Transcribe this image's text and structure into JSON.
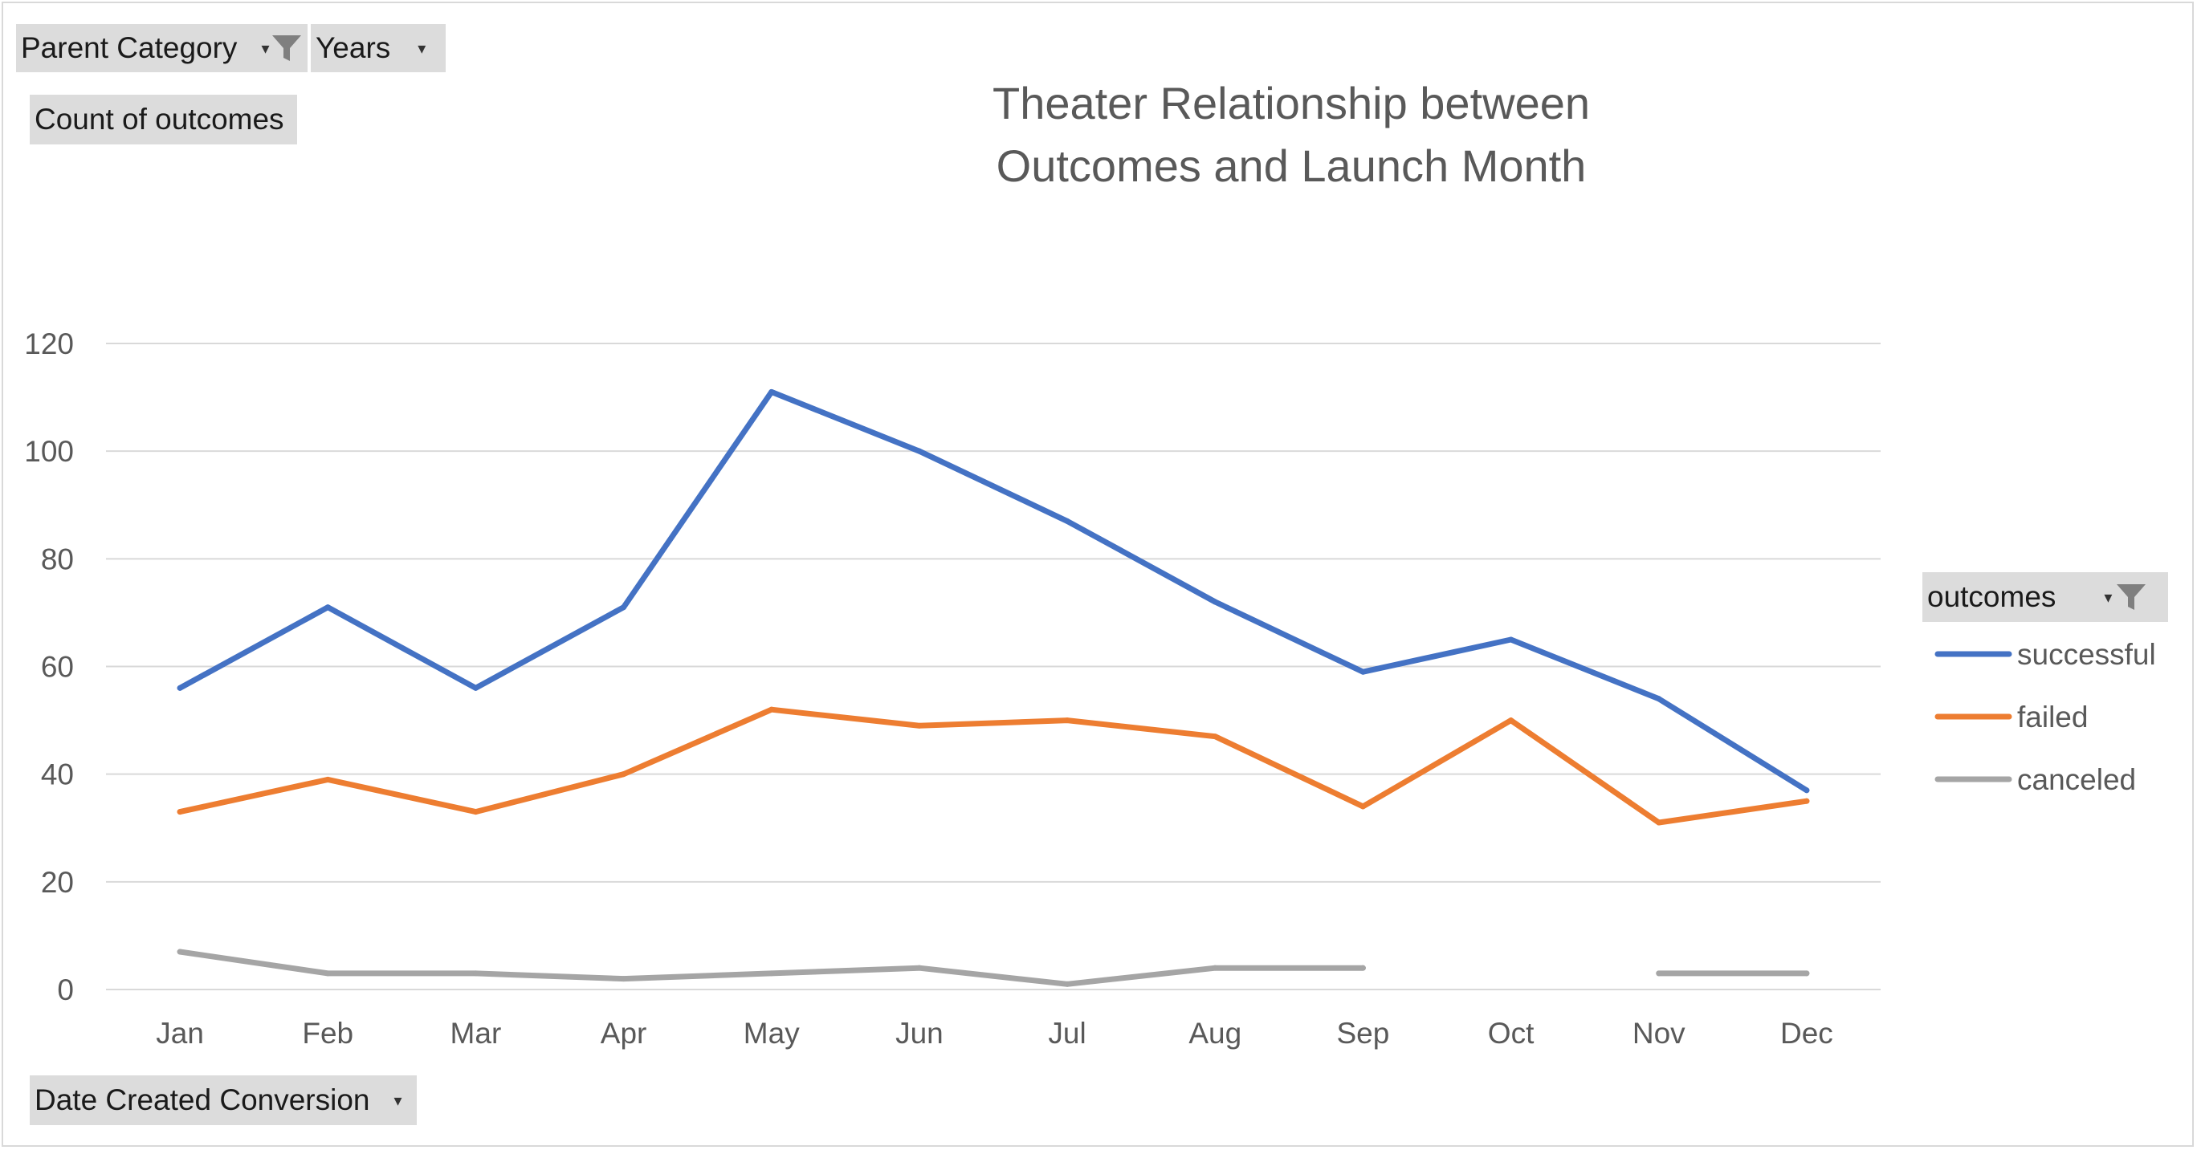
{
  "filters": {
    "parent_category": {
      "label": "Parent Category",
      "icon": "filter-funnel-icon"
    },
    "years": {
      "label": "Years",
      "icon": "dropdown-arrow-icon"
    },
    "values_field": {
      "label": "Count of outcomes"
    },
    "axis_field": {
      "label": "Date Created Conversion",
      "icon": "dropdown-arrow-icon"
    },
    "legend_field": {
      "label": "outcomes",
      "icon": "filter-funnel-icon"
    }
  },
  "chart_data": {
    "type": "line",
    "title": [
      "Theater Relationship between",
      "Outcomes and Launch Month"
    ],
    "categories": [
      "Jan",
      "Feb",
      "Mar",
      "Apr",
      "May",
      "Jun",
      "Jul",
      "Aug",
      "Sep",
      "Oct",
      "Nov",
      "Dec"
    ],
    "ylim": [
      0,
      120
    ],
    "yticks": [
      0,
      20,
      40,
      60,
      80,
      100,
      120
    ],
    "grid": true,
    "legend_position": "right",
    "series": [
      {
        "name": "successful",
        "color": "#4472C4",
        "values": [
          56,
          71,
          56,
          71,
          111,
          100,
          87,
          72,
          59,
          65,
          54,
          37
        ]
      },
      {
        "name": "failed",
        "color": "#ED7D31",
        "values": [
          33,
          39,
          33,
          40,
          52,
          49,
          50,
          47,
          34,
          50,
          31,
          35
        ]
      },
      {
        "name": "canceled",
        "color": "#A5A5A5",
        "values": [
          7,
          3,
          3,
          2,
          3,
          4,
          1,
          4,
          4,
          null,
          3,
          3
        ]
      }
    ]
  }
}
